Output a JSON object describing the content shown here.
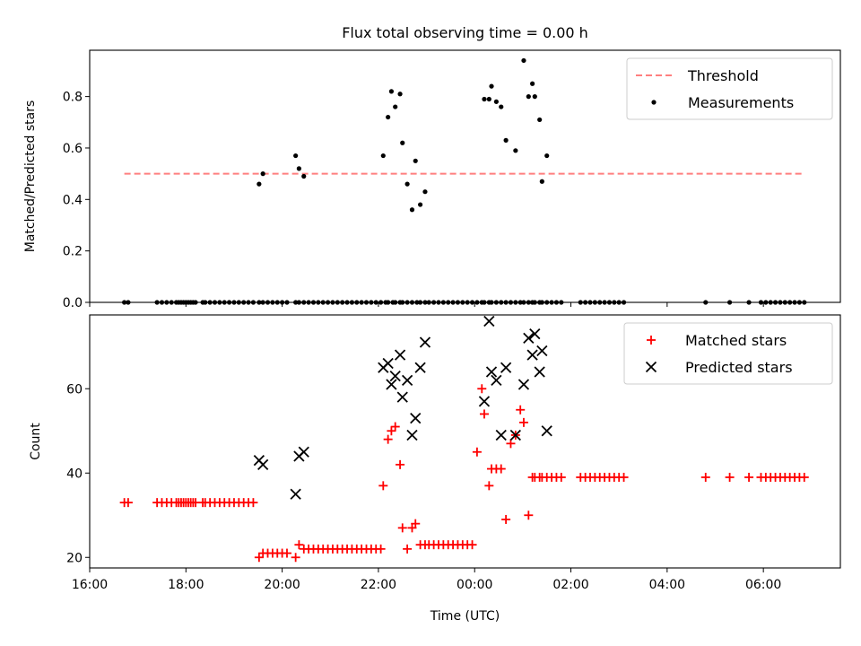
{
  "chart_data": [
    {
      "type": "scatter",
      "title": "Flux total observing time = 0.00 h",
      "xlabel": "",
      "ylabel": "Matched/Predicted stars",
      "xlim": [
        16.0,
        31.6
      ],
      "ylim": [
        0.0,
        0.98
      ],
      "yticks": [
        0.0,
        0.2,
        0.4,
        0.6,
        0.8
      ],
      "ytick_labels": [
        "0.0",
        "0.2",
        "0.4",
        "0.6",
        "0.8"
      ],
      "grid": false,
      "legend_position": "top-right",
      "series": [
        {
          "name": "Threshold",
          "kind": "dashed-line",
          "color": "#ff7f7f",
          "x": [
            16.72,
            30.85
          ],
          "y": [
            0.5,
            0.5
          ]
        },
        {
          "name": "Measurements",
          "kind": "dots",
          "color": "#000000",
          "x": [
            16.72,
            16.8,
            17.4,
            17.5,
            17.6,
            17.7,
            17.8,
            17.85,
            17.9,
            17.95,
            18.0,
            18.05,
            18.1,
            18.15,
            18.2,
            18.35,
            18.4,
            18.5,
            18.6,
            18.7,
            18.8,
            18.9,
            19.0,
            19.1,
            19.2,
            19.3,
            19.4,
            19.52,
            19.6,
            19.7,
            19.8,
            19.9,
            20.0,
            20.1,
            20.28,
            20.35,
            20.45,
            20.55,
            20.65,
            20.75,
            20.85,
            20.95,
            21.05,
            21.15,
            21.25,
            21.35,
            21.45,
            21.55,
            21.65,
            21.75,
            21.85,
            21.95,
            22.05,
            22.15,
            22.2,
            22.3,
            22.35,
            22.45,
            22.5,
            22.6,
            22.7,
            22.8,
            22.87,
            22.97,
            23.05,
            23.15,
            23.25,
            23.35,
            23.45,
            23.55,
            23.65,
            23.75,
            23.85,
            23.95,
            24.05,
            24.15,
            24.2,
            24.3,
            24.35,
            24.45,
            24.55,
            24.65,
            24.75,
            24.85,
            24.95,
            25.02,
            25.12,
            25.2,
            25.25,
            25.35,
            25.4,
            25.5,
            25.6,
            25.7,
            25.8,
            26.2,
            26.3,
            26.4,
            26.5,
            26.6,
            26.7,
            26.8,
            26.9,
            27.0,
            27.1,
            28.8,
            29.3,
            29.7,
            29.95,
            30.05,
            30.15,
            30.25,
            30.35,
            30.45,
            30.55,
            30.65,
            30.75,
            30.85,
            19.52,
            19.6,
            20.28,
            20.35,
            20.45,
            22.1,
            22.2,
            22.27,
            22.35,
            22.45,
            22.5,
            22.6,
            22.7,
            22.77,
            22.87,
            22.97,
            24.2,
            24.3,
            24.35,
            24.45,
            24.55,
            24.65,
            24.85,
            25.02,
            25.12,
            25.2,
            25.25,
            25.35,
            25.4,
            25.5
          ],
          "y": [
            0,
            0,
            0,
            0,
            0,
            0,
            0,
            0,
            0,
            0,
            0,
            0,
            0,
            0,
            0,
            0,
            0,
            0,
            0,
            0,
            0,
            0,
            0,
            0,
            0,
            0,
            0,
            0,
            0,
            0,
            0,
            0,
            0,
            0,
            0,
            0,
            0,
            0,
            0,
            0,
            0,
            0,
            0,
            0,
            0,
            0,
            0,
            0,
            0,
            0,
            0,
            0,
            0,
            0,
            0,
            0,
            0,
            0,
            0,
            0,
            0,
            0,
            0,
            0,
            0,
            0,
            0,
            0,
            0,
            0,
            0,
            0,
            0,
            0,
            0,
            0,
            0,
            0,
            0,
            0,
            0,
            0,
            0,
            0,
            0,
            0,
            0,
            0,
            0,
            0,
            0,
            0,
            0,
            0,
            0,
            0,
            0,
            0,
            0,
            0,
            0,
            0,
            0,
            0,
            0,
            0,
            0,
            0,
            0,
            0,
            0,
            0,
            0,
            0,
            0,
            0,
            0,
            0,
            0.46,
            0.5,
            0.57,
            0.52,
            0.49,
            0.57,
            0.72,
            0.82,
            0.76,
            0.81,
            0.62,
            0.46,
            0.36,
            0.55,
            0.38,
            0.43,
            0.79,
            0.79,
            0.84,
            0.78,
            0.76,
            0.63,
            0.59,
            0.94,
            0.8,
            0.85,
            0.8,
            0.71,
            0.47,
            0.57
          ]
        }
      ]
    },
    {
      "type": "scatter",
      "title": "",
      "xlabel": "Time (UTC)",
      "ylabel": "Count",
      "xlim": [
        16.0,
        31.6
      ],
      "ylim": [
        17.5,
        77.5
      ],
      "yticks": [
        20,
        40,
        60
      ],
      "ytick_labels": [
        "20",
        "40",
        "60"
      ],
      "xticks": [
        16,
        18,
        20,
        22,
        24,
        26,
        28,
        30
      ],
      "xtick_labels": [
        "16:00",
        "18:00",
        "20:00",
        "22:00",
        "00:00",
        "02:00",
        "04:00",
        "06:00"
      ],
      "grid": false,
      "legend_position": "top-right",
      "series": [
        {
          "name": "Matched stars",
          "marker": "plus",
          "color": "#ff0000",
          "x": [
            16.72,
            16.8,
            17.4,
            17.5,
            17.6,
            17.7,
            17.8,
            17.85,
            17.9,
            17.95,
            18.0,
            18.05,
            18.1,
            18.15,
            18.2,
            18.35,
            18.4,
            18.5,
            18.6,
            18.7,
            18.8,
            18.9,
            19.0,
            19.1,
            19.2,
            19.3,
            19.4,
            19.52,
            19.6,
            19.7,
            19.8,
            19.9,
            20.0,
            20.1,
            20.28,
            20.35,
            20.45,
            20.55,
            20.65,
            20.75,
            20.85,
            20.95,
            21.05,
            21.15,
            21.25,
            21.35,
            21.45,
            21.55,
            21.65,
            21.75,
            21.85,
            21.95,
            22.05,
            22.1,
            22.2,
            22.27,
            22.35,
            22.45,
            22.5,
            22.6,
            22.7,
            22.77,
            22.87,
            22.97,
            23.05,
            23.15,
            23.25,
            23.35,
            23.45,
            23.55,
            23.65,
            23.75,
            23.85,
            23.95,
            24.05,
            24.15,
            24.2,
            24.3,
            24.35,
            24.45,
            24.55,
            24.65,
            24.75,
            24.85,
            24.95,
            25.02,
            25.12,
            25.2,
            25.25,
            25.35,
            25.4,
            25.5,
            25.6,
            25.7,
            25.8,
            26.2,
            26.3,
            26.4,
            26.5,
            26.6,
            26.7,
            26.8,
            26.9,
            27.0,
            27.1,
            28.8,
            29.3,
            29.7,
            29.95,
            30.05,
            30.15,
            30.25,
            30.35,
            30.45,
            30.55,
            30.65,
            30.75,
            30.85
          ],
          "y": [
            33,
            33,
            33,
            33,
            33,
            33,
            33,
            33,
            33,
            33,
            33,
            33,
            33,
            33,
            33,
            33,
            33,
            33,
            33,
            33,
            33,
            33,
            33,
            33,
            33,
            33,
            33,
            20,
            21,
            21,
            21,
            21,
            21,
            21,
            20,
            23,
            22,
            22,
            22,
            22,
            22,
            22,
            22,
            22,
            22,
            22,
            22,
            22,
            22,
            22,
            22,
            22,
            22,
            37,
            48,
            50,
            51,
            42,
            27,
            22,
            27,
            28,
            23,
            23,
            23,
            23,
            23,
            23,
            23,
            23,
            23,
            23,
            23,
            23,
            45,
            60,
            54,
            37,
            41,
            41,
            41,
            29,
            47,
            49,
            55,
            52,
            30,
            39,
            39,
            39,
            39,
            39,
            39,
            39,
            39,
            39,
            39,
            39,
            39,
            39,
            39,
            39,
            39,
            39,
            39,
            39,
            39,
            39,
            39,
            39,
            39,
            39,
            39,
            39,
            39,
            39,
            39,
            39
          ]
        },
        {
          "name": "Predicted stars",
          "marker": "x",
          "color": "#000000",
          "x": [
            19.52,
            19.6,
            20.28,
            20.35,
            20.45,
            22.1,
            22.2,
            22.27,
            22.35,
            22.45,
            22.5,
            22.6,
            22.7,
            22.77,
            22.87,
            22.97,
            24.2,
            24.3,
            24.35,
            24.45,
            24.55,
            24.65,
            24.85,
            25.02,
            25.12,
            25.2,
            25.25,
            25.35,
            25.4,
            25.5
          ],
          "y": [
            43,
            42,
            35,
            44,
            45,
            65,
            66,
            61,
            63,
            68,
            58,
            62,
            49,
            53,
            65,
            71,
            57,
            76,
            64,
            62,
            49,
            65,
            49,
            61,
            72,
            68,
            73,
            64,
            69,
            50
          ]
        }
      ]
    }
  ]
}
